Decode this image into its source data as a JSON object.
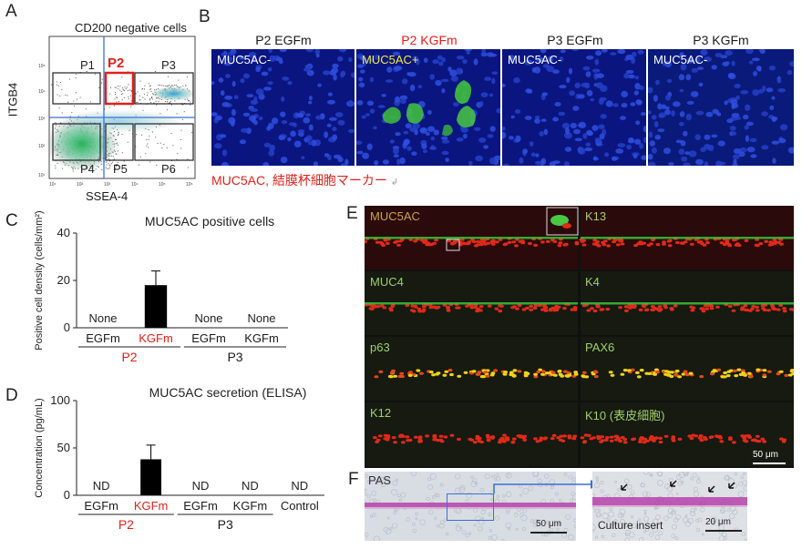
{
  "panels": {
    "A": {
      "letter": "A",
      "title": "CD200 negative cells",
      "ylabel": "ITGB4",
      "xlabel": "SSEA-4",
      "gates": [
        "P1",
        "P2",
        "P3",
        "P4",
        "P5",
        "P6"
      ],
      "y_ticks": [
        "10⁵",
        "10⁴",
        "10³",
        "10²",
        "10¹"
      ],
      "x_ticks": [
        "10¹",
        "10²",
        "10³",
        "10⁴",
        "10⁵",
        "10⁶"
      ],
      "highlight_gate": "P2",
      "highlight_color": "#e0201a"
    },
    "B": {
      "letter": "B",
      "columns": [
        {
          "header": "P2 EGFm",
          "marker": "MUC5AC-",
          "header_color": "#1a1a1a",
          "marker_color": "#ffffff"
        },
        {
          "header": "P2 KGFm",
          "marker": "MUC5AC+",
          "header_color": "#e0201a",
          "marker_color": "#f2e84a"
        },
        {
          "header": "P3 EGFm",
          "marker": "MUC5AC-",
          "header_color": "#1a1a1a",
          "marker_color": "#ffffff"
        },
        {
          "header": "P3 KGFm",
          "marker": "MUC5AC-",
          "header_color": "#1a1a1a",
          "marker_color": "#ffffff"
        }
      ],
      "caption": "MUC5AC, 結膜杯細胞マーカー",
      "caption_mark": "↲"
    },
    "E": {
      "letter": "E",
      "left": [
        "MUC5AC",
        "MUC4",
        "p63",
        "K12"
      ],
      "right": [
        "K13",
        "K4",
        "PAX6",
        "K10 (表皮細胞)"
      ],
      "scale": "50 μm"
    },
    "F": {
      "letter": "F",
      "stain": "PAS",
      "scale_left": "50 μm",
      "insert_label": "Culture insert",
      "scale_right": "20 μm"
    }
  },
  "chart_data": [
    {
      "type": "bar",
      "panel": "C",
      "title": "MUC5AC positive cells",
      "ylabel": "Positive cell density (cells/mm²)",
      "ylim": [
        0,
        40
      ],
      "yticks": [
        0,
        20,
        40
      ],
      "categories": [
        "EGFm",
        "KGFm",
        "EGFm",
        "KGFm"
      ],
      "groups": [
        {
          "label": "P2",
          "span": [
            0,
            1
          ],
          "color": "#e0201a"
        },
        {
          "label": "P3",
          "span": [
            2,
            3
          ],
          "color": "#1a1a1a"
        }
      ],
      "category_colors": [
        "#1a1a1a",
        "#e0201a",
        "#1a1a1a",
        "#1a1a1a"
      ],
      "values": [
        null,
        18,
        null,
        null
      ],
      "errors": [
        null,
        6,
        null,
        null
      ],
      "value_labels": [
        "None",
        "",
        "None",
        "None"
      ]
    },
    {
      "type": "bar",
      "panel": "D",
      "title": "MUC5AC secretion (ELISA)",
      "ylabel": "Concentration (pg/mL)",
      "ylim": [
        0,
        100
      ],
      "yticks": [
        0,
        50,
        100
      ],
      "categories": [
        "EGFm",
        "KGFm",
        "EGFm",
        "KGFm",
        "Control"
      ],
      "groups": [
        {
          "label": "P2",
          "span": [
            0,
            1
          ],
          "color": "#e0201a"
        },
        {
          "label": "P3",
          "span": [
            2,
            3
          ],
          "color": "#1a1a1a"
        }
      ],
      "category_colors": [
        "#1a1a1a",
        "#e0201a",
        "#1a1a1a",
        "#1a1a1a",
        "#1a1a1a"
      ],
      "values": [
        null,
        38,
        null,
        null,
        null
      ],
      "errors": [
        null,
        15,
        null,
        null,
        null
      ],
      "value_labels": [
        "ND",
        "",
        "ND",
        "ND",
        "ND"
      ]
    }
  ]
}
